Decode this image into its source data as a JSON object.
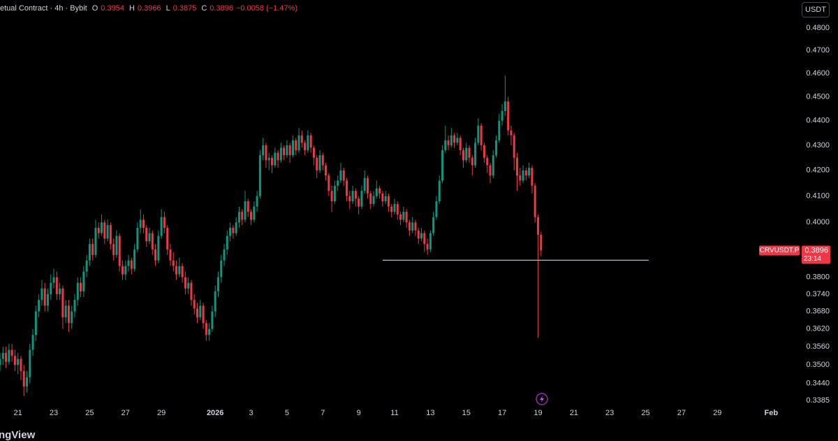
{
  "chart_data": {
    "type": "candlestick",
    "instrument_text": "etual Contract · 4h · Bybit",
    "ohlc_keys": [
      "O",
      "H",
      "L",
      "C"
    ],
    "change_label": "−0.0058 (−1.47%)",
    "currency_button": "USDT",
    "symbol": "CRVUSDT.P",
    "countdown": "23:14",
    "logo_text": "ngView",
    "log_scale": true,
    "grid": false,
    "up_color": "#089981",
    "down_color": "#f23645",
    "ylim": [
      0.337,
      0.4927
    ],
    "yticks": [
      {
        "value": 0.48,
        "label": "0.4800"
      },
      {
        "value": 0.47,
        "label": "0.4700"
      },
      {
        "value": 0.46,
        "label": "0.4600"
      },
      {
        "value": 0.45,
        "label": "0.4500"
      },
      {
        "value": 0.44,
        "label": "0.4400"
      },
      {
        "value": 0.43,
        "label": "0.4300"
      },
      {
        "value": 0.42,
        "label": "0.4200"
      },
      {
        "value": 0.41,
        "label": "0.4100"
      },
      {
        "value": 0.4,
        "label": "0.4000"
      },
      {
        "value": 0.38,
        "label": "0.3800"
      },
      {
        "value": 0.374,
        "label": "0.3740"
      },
      {
        "value": 0.368,
        "label": "0.3680"
      },
      {
        "value": 0.362,
        "label": "0.3620"
      },
      {
        "value": 0.356,
        "label": "0.3560"
      },
      {
        "value": 0.35,
        "label": "0.3500"
      },
      {
        "value": 0.344,
        "label": "0.3440"
      },
      {
        "value": 0.3385,
        "label": "0.3385"
      }
    ],
    "xlim": [
      0,
      264
    ],
    "xticks": [
      {
        "value": 6,
        "label": "21"
      },
      {
        "value": 18,
        "label": "23"
      },
      {
        "value": 30,
        "label": "25"
      },
      {
        "value": 42,
        "label": "27"
      },
      {
        "value": 54,
        "label": "29"
      },
      {
        "value": 72,
        "label": "2026"
      },
      {
        "value": 84,
        "label": "3"
      },
      {
        "value": 96,
        "label": "5"
      },
      {
        "value": 108,
        "label": "7"
      },
      {
        "value": 120,
        "label": "9"
      },
      {
        "value": 132,
        "label": "11"
      },
      {
        "value": 144,
        "label": "13"
      },
      {
        "value": 156,
        "label": "15"
      },
      {
        "value": 168,
        "label": "17"
      },
      {
        "value": 180,
        "label": "19"
      },
      {
        "value": 192,
        "label": "21"
      },
      {
        "value": 204,
        "label": "23"
      },
      {
        "value": 216,
        "label": "25"
      },
      {
        "value": 228,
        "label": "27"
      },
      {
        "value": 240,
        "label": "29"
      },
      {
        "value": 258,
        "label": "Feb"
      }
    ],
    "horizontal_line": {
      "value": 0.3861,
      "from": 128,
      "to": 217,
      "color": "#d1d4dc"
    },
    "candles": [
      [
        0.35,
        0.354,
        0.348,
        0.352
      ],
      [
        0.352,
        0.356,
        0.35,
        0.354
      ],
      [
        0.354,
        0.356,
        0.349,
        0.351
      ],
      [
        0.351,
        0.357,
        0.35,
        0.355
      ],
      [
        0.355,
        0.357,
        0.351,
        0.353
      ],
      [
        0.353,
        0.355,
        0.348,
        0.35
      ],
      [
        0.35,
        0.354,
        0.347,
        0.352
      ],
      [
        0.352,
        0.353,
        0.345,
        0.348
      ],
      [
        0.348,
        0.35,
        0.34,
        0.343
      ],
      [
        0.343,
        0.348,
        0.341,
        0.346
      ],
      [
        0.346,
        0.357,
        0.344,
        0.355
      ],
      [
        0.355,
        0.362,
        0.353,
        0.36
      ],
      [
        0.36,
        0.37,
        0.358,
        0.368
      ],
      [
        0.368,
        0.374,
        0.366,
        0.372
      ],
      [
        0.372,
        0.379,
        0.37,
        0.376
      ],
      [
        0.376,
        0.378,
        0.368,
        0.37
      ],
      [
        0.37,
        0.376,
        0.368,
        0.374
      ],
      [
        0.374,
        0.381,
        0.372,
        0.378
      ],
      [
        0.378,
        0.383,
        0.376,
        0.38
      ],
      [
        0.38,
        0.382,
        0.372,
        0.374
      ],
      [
        0.374,
        0.378,
        0.372,
        0.376
      ],
      [
        0.376,
        0.377,
        0.362,
        0.366
      ],
      [
        0.366,
        0.372,
        0.364,
        0.37
      ],
      [
        0.37,
        0.372,
        0.361,
        0.364
      ],
      [
        0.364,
        0.37,
        0.362,
        0.368
      ],
      [
        0.368,
        0.374,
        0.366,
        0.372
      ],
      [
        0.372,
        0.38,
        0.37,
        0.378
      ],
      [
        0.378,
        0.38,
        0.373,
        0.375
      ],
      [
        0.375,
        0.384,
        0.373,
        0.382
      ],
      [
        0.382,
        0.388,
        0.38,
        0.386
      ],
      [
        0.386,
        0.394,
        0.384,
        0.392
      ],
      [
        0.392,
        0.394,
        0.386,
        0.388
      ],
      [
        0.388,
        0.401,
        0.387,
        0.398
      ],
      [
        0.398,
        0.4,
        0.394,
        0.396
      ],
      [
        0.396,
        0.403,
        0.395,
        0.4
      ],
      [
        0.4,
        0.401,
        0.392,
        0.394
      ],
      [
        0.394,
        0.401,
        0.393,
        0.399
      ],
      [
        0.399,
        0.4,
        0.39,
        0.392
      ],
      [
        0.392,
        0.394,
        0.386,
        0.388
      ],
      [
        0.388,
        0.397,
        0.387,
        0.395
      ],
      [
        0.395,
        0.396,
        0.382,
        0.384
      ],
      [
        0.384,
        0.386,
        0.379,
        0.381
      ],
      [
        0.381,
        0.386,
        0.379,
        0.384
      ],
      [
        0.384,
        0.388,
        0.382,
        0.386
      ],
      [
        0.386,
        0.387,
        0.381,
        0.383
      ],
      [
        0.383,
        0.392,
        0.382,
        0.39
      ],
      [
        0.39,
        0.4,
        0.389,
        0.398
      ],
      [
        0.398,
        0.405,
        0.396,
        0.401
      ],
      [
        0.401,
        0.403,
        0.396,
        0.398
      ],
      [
        0.398,
        0.399,
        0.391,
        0.393
      ],
      [
        0.393,
        0.398,
        0.392,
        0.396
      ],
      [
        0.396,
        0.397,
        0.388,
        0.39
      ],
      [
        0.39,
        0.392,
        0.384,
        0.386
      ],
      [
        0.386,
        0.397,
        0.385,
        0.395
      ],
      [
        0.395,
        0.405,
        0.394,
        0.402
      ],
      [
        0.402,
        0.404,
        0.396,
        0.398
      ],
      [
        0.398,
        0.399,
        0.388,
        0.39
      ],
      [
        0.39,
        0.392,
        0.384,
        0.386
      ],
      [
        0.386,
        0.389,
        0.382,
        0.384
      ],
      [
        0.384,
        0.386,
        0.379,
        0.381
      ],
      [
        0.381,
        0.387,
        0.38,
        0.384
      ],
      [
        0.384,
        0.385,
        0.378,
        0.38
      ],
      [
        0.38,
        0.382,
        0.374,
        0.376
      ],
      [
        0.376,
        0.38,
        0.374,
        0.378
      ],
      [
        0.378,
        0.379,
        0.37,
        0.372
      ],
      [
        0.372,
        0.374,
        0.367,
        0.369
      ],
      [
        0.369,
        0.371,
        0.364,
        0.366
      ],
      [
        0.366,
        0.372,
        0.365,
        0.37
      ],
      [
        0.37,
        0.371,
        0.362,
        0.364
      ],
      [
        0.364,
        0.365,
        0.358,
        0.36
      ],
      [
        0.36,
        0.364,
        0.358,
        0.362
      ],
      [
        0.362,
        0.37,
        0.361,
        0.368
      ],
      [
        0.368,
        0.377,
        0.366,
        0.375
      ],
      [
        0.375,
        0.382,
        0.373,
        0.38
      ],
      [
        0.38,
        0.388,
        0.378,
        0.386
      ],
      [
        0.386,
        0.392,
        0.384,
        0.39
      ],
      [
        0.39,
        0.397,
        0.388,
        0.395
      ],
      [
        0.395,
        0.4,
        0.393,
        0.398
      ],
      [
        0.398,
        0.399,
        0.394,
        0.396
      ],
      [
        0.396,
        0.402,
        0.395,
        0.4
      ],
      [
        0.4,
        0.406,
        0.398,
        0.404
      ],
      [
        0.404,
        0.405,
        0.399,
        0.401
      ],
      [
        0.401,
        0.412,
        0.4,
        0.408
      ],
      [
        0.408,
        0.409,
        0.402,
        0.404
      ],
      [
        0.404,
        0.405,
        0.399,
        0.401
      ],
      [
        0.401,
        0.408,
        0.4,
        0.406
      ],
      [
        0.406,
        0.412,
        0.404,
        0.41
      ],
      [
        0.41,
        0.428,
        0.409,
        0.426
      ],
      [
        0.426,
        0.433,
        0.424,
        0.43
      ],
      [
        0.43,
        0.431,
        0.421,
        0.424
      ],
      [
        0.424,
        0.427,
        0.42,
        0.425
      ],
      [
        0.425,
        0.426,
        0.419,
        0.422
      ],
      [
        0.422,
        0.429,
        0.421,
        0.427
      ],
      [
        0.427,
        0.428,
        0.421,
        0.424
      ],
      [
        0.424,
        0.431,
        0.423,
        0.429
      ],
      [
        0.429,
        0.43,
        0.424,
        0.426
      ],
      [
        0.426,
        0.432,
        0.425,
        0.43
      ],
      [
        0.43,
        0.431,
        0.423,
        0.426
      ],
      [
        0.426,
        0.434,
        0.425,
        0.432
      ],
      [
        0.432,
        0.433,
        0.426,
        0.428
      ],
      [
        0.428,
        0.437,
        0.427,
        0.434
      ],
      [
        0.434,
        0.436,
        0.429,
        0.431
      ],
      [
        0.431,
        0.432,
        0.426,
        0.428
      ],
      [
        0.428,
        0.436,
        0.427,
        0.434
      ],
      [
        0.434,
        0.435,
        0.427,
        0.429
      ],
      [
        0.429,
        0.43,
        0.422,
        0.425
      ],
      [
        0.425,
        0.426,
        0.417,
        0.42
      ],
      [
        0.42,
        0.428,
        0.419,
        0.426
      ],
      [
        0.426,
        0.427,
        0.42,
        0.422
      ],
      [
        0.422,
        0.423,
        0.416,
        0.418
      ],
      [
        0.418,
        0.419,
        0.41,
        0.412
      ],
      [
        0.412,
        0.414,
        0.404,
        0.408
      ],
      [
        0.408,
        0.416,
        0.407,
        0.414
      ],
      [
        0.414,
        0.418,
        0.412,
        0.416
      ],
      [
        0.416,
        0.423,
        0.415,
        0.42
      ],
      [
        0.42,
        0.421,
        0.414,
        0.416
      ],
      [
        0.416,
        0.417,
        0.408,
        0.41
      ],
      [
        0.41,
        0.412,
        0.405,
        0.408
      ],
      [
        0.408,
        0.414,
        0.407,
        0.412
      ],
      [
        0.412,
        0.413,
        0.406,
        0.409
      ],
      [
        0.409,
        0.41,
        0.403,
        0.406
      ],
      [
        0.406,
        0.414,
        0.405,
        0.412
      ],
      [
        0.412,
        0.42,
        0.411,
        0.417
      ],
      [
        0.417,
        0.418,
        0.409,
        0.411
      ],
      [
        0.411,
        0.412,
        0.405,
        0.407
      ],
      [
        0.407,
        0.412,
        0.406,
        0.41
      ],
      [
        0.41,
        0.416,
        0.409,
        0.413
      ],
      [
        0.413,
        0.414,
        0.409,
        0.411
      ],
      [
        0.411,
        0.412,
        0.406,
        0.408
      ],
      [
        0.408,
        0.412,
        0.407,
        0.41
      ],
      [
        0.41,
        0.411,
        0.404,
        0.406
      ],
      [
        0.406,
        0.407,
        0.402,
        0.404
      ],
      [
        0.404,
        0.409,
        0.403,
        0.407
      ],
      [
        0.407,
        0.408,
        0.401,
        0.403
      ],
      [
        0.403,
        0.404,
        0.399,
        0.401
      ],
      [
        0.401,
        0.406,
        0.4,
        0.404
      ],
      [
        0.404,
        0.405,
        0.398,
        0.4
      ],
      [
        0.4,
        0.401,
        0.395,
        0.397
      ],
      [
        0.397,
        0.402,
        0.396,
        0.4
      ],
      [
        0.4,
        0.401,
        0.395,
        0.397
      ],
      [
        0.397,
        0.398,
        0.392,
        0.394
      ],
      [
        0.394,
        0.398,
        0.393,
        0.396
      ],
      [
        0.396,
        0.397,
        0.389,
        0.392
      ],
      [
        0.392,
        0.394,
        0.388,
        0.39
      ],
      [
        0.39,
        0.397,
        0.389,
        0.396
      ],
      [
        0.396,
        0.404,
        0.395,
        0.402
      ],
      [
        0.402,
        0.41,
        0.401,
        0.408
      ],
      [
        0.408,
        0.418,
        0.407,
        0.416
      ],
      [
        0.416,
        0.43,
        0.415,
        0.428
      ],
      [
        0.428,
        0.438,
        0.427,
        0.432
      ],
      [
        0.432,
        0.434,
        0.428,
        0.43
      ],
      [
        0.43,
        0.437,
        0.429,
        0.434
      ],
      [
        0.434,
        0.435,
        0.429,
        0.431
      ],
      [
        0.431,
        0.435,
        0.43,
        0.433
      ],
      [
        0.433,
        0.434,
        0.426,
        0.428
      ],
      [
        0.428,
        0.429,
        0.421,
        0.424
      ],
      [
        0.424,
        0.431,
        0.423,
        0.429
      ],
      [
        0.429,
        0.43,
        0.423,
        0.425
      ],
      [
        0.425,
        0.426,
        0.418,
        0.422
      ],
      [
        0.422,
        0.433,
        0.421,
        0.431
      ],
      [
        0.431,
        0.441,
        0.43,
        0.438
      ],
      [
        0.438,
        0.439,
        0.428,
        0.43
      ],
      [
        0.43,
        0.431,
        0.423,
        0.425
      ],
      [
        0.425,
        0.426,
        0.419,
        0.422
      ],
      [
        0.422,
        0.423,
        0.415,
        0.418
      ],
      [
        0.418,
        0.428,
        0.417,
        0.426
      ],
      [
        0.426,
        0.434,
        0.425,
        0.432
      ],
      [
        0.432,
        0.443,
        0.431,
        0.44
      ],
      [
        0.44,
        0.447,
        0.438,
        0.444
      ],
      [
        0.444,
        0.459,
        0.442,
        0.448
      ],
      [
        0.448,
        0.45,
        0.434,
        0.436
      ],
      [
        0.436,
        0.438,
        0.43,
        0.434
      ],
      [
        0.434,
        0.435,
        0.42,
        0.425
      ],
      [
        0.425,
        0.427,
        0.412,
        0.418
      ],
      [
        0.418,
        0.421,
        0.414,
        0.416
      ],
      [
        0.416,
        0.422,
        0.415,
        0.42
      ],
      [
        0.42,
        0.421,
        0.416,
        0.418
      ],
      [
        0.418,
        0.423,
        0.417,
        0.421
      ],
      [
        0.421,
        0.422,
        0.411,
        0.414
      ],
      [
        0.414,
        0.415,
        0.4,
        0.402
      ],
      [
        0.402,
        0.403,
        0.359,
        0.3954
      ],
      [
        0.3954,
        0.3966,
        0.3875,
        0.3896
      ]
    ]
  }
}
